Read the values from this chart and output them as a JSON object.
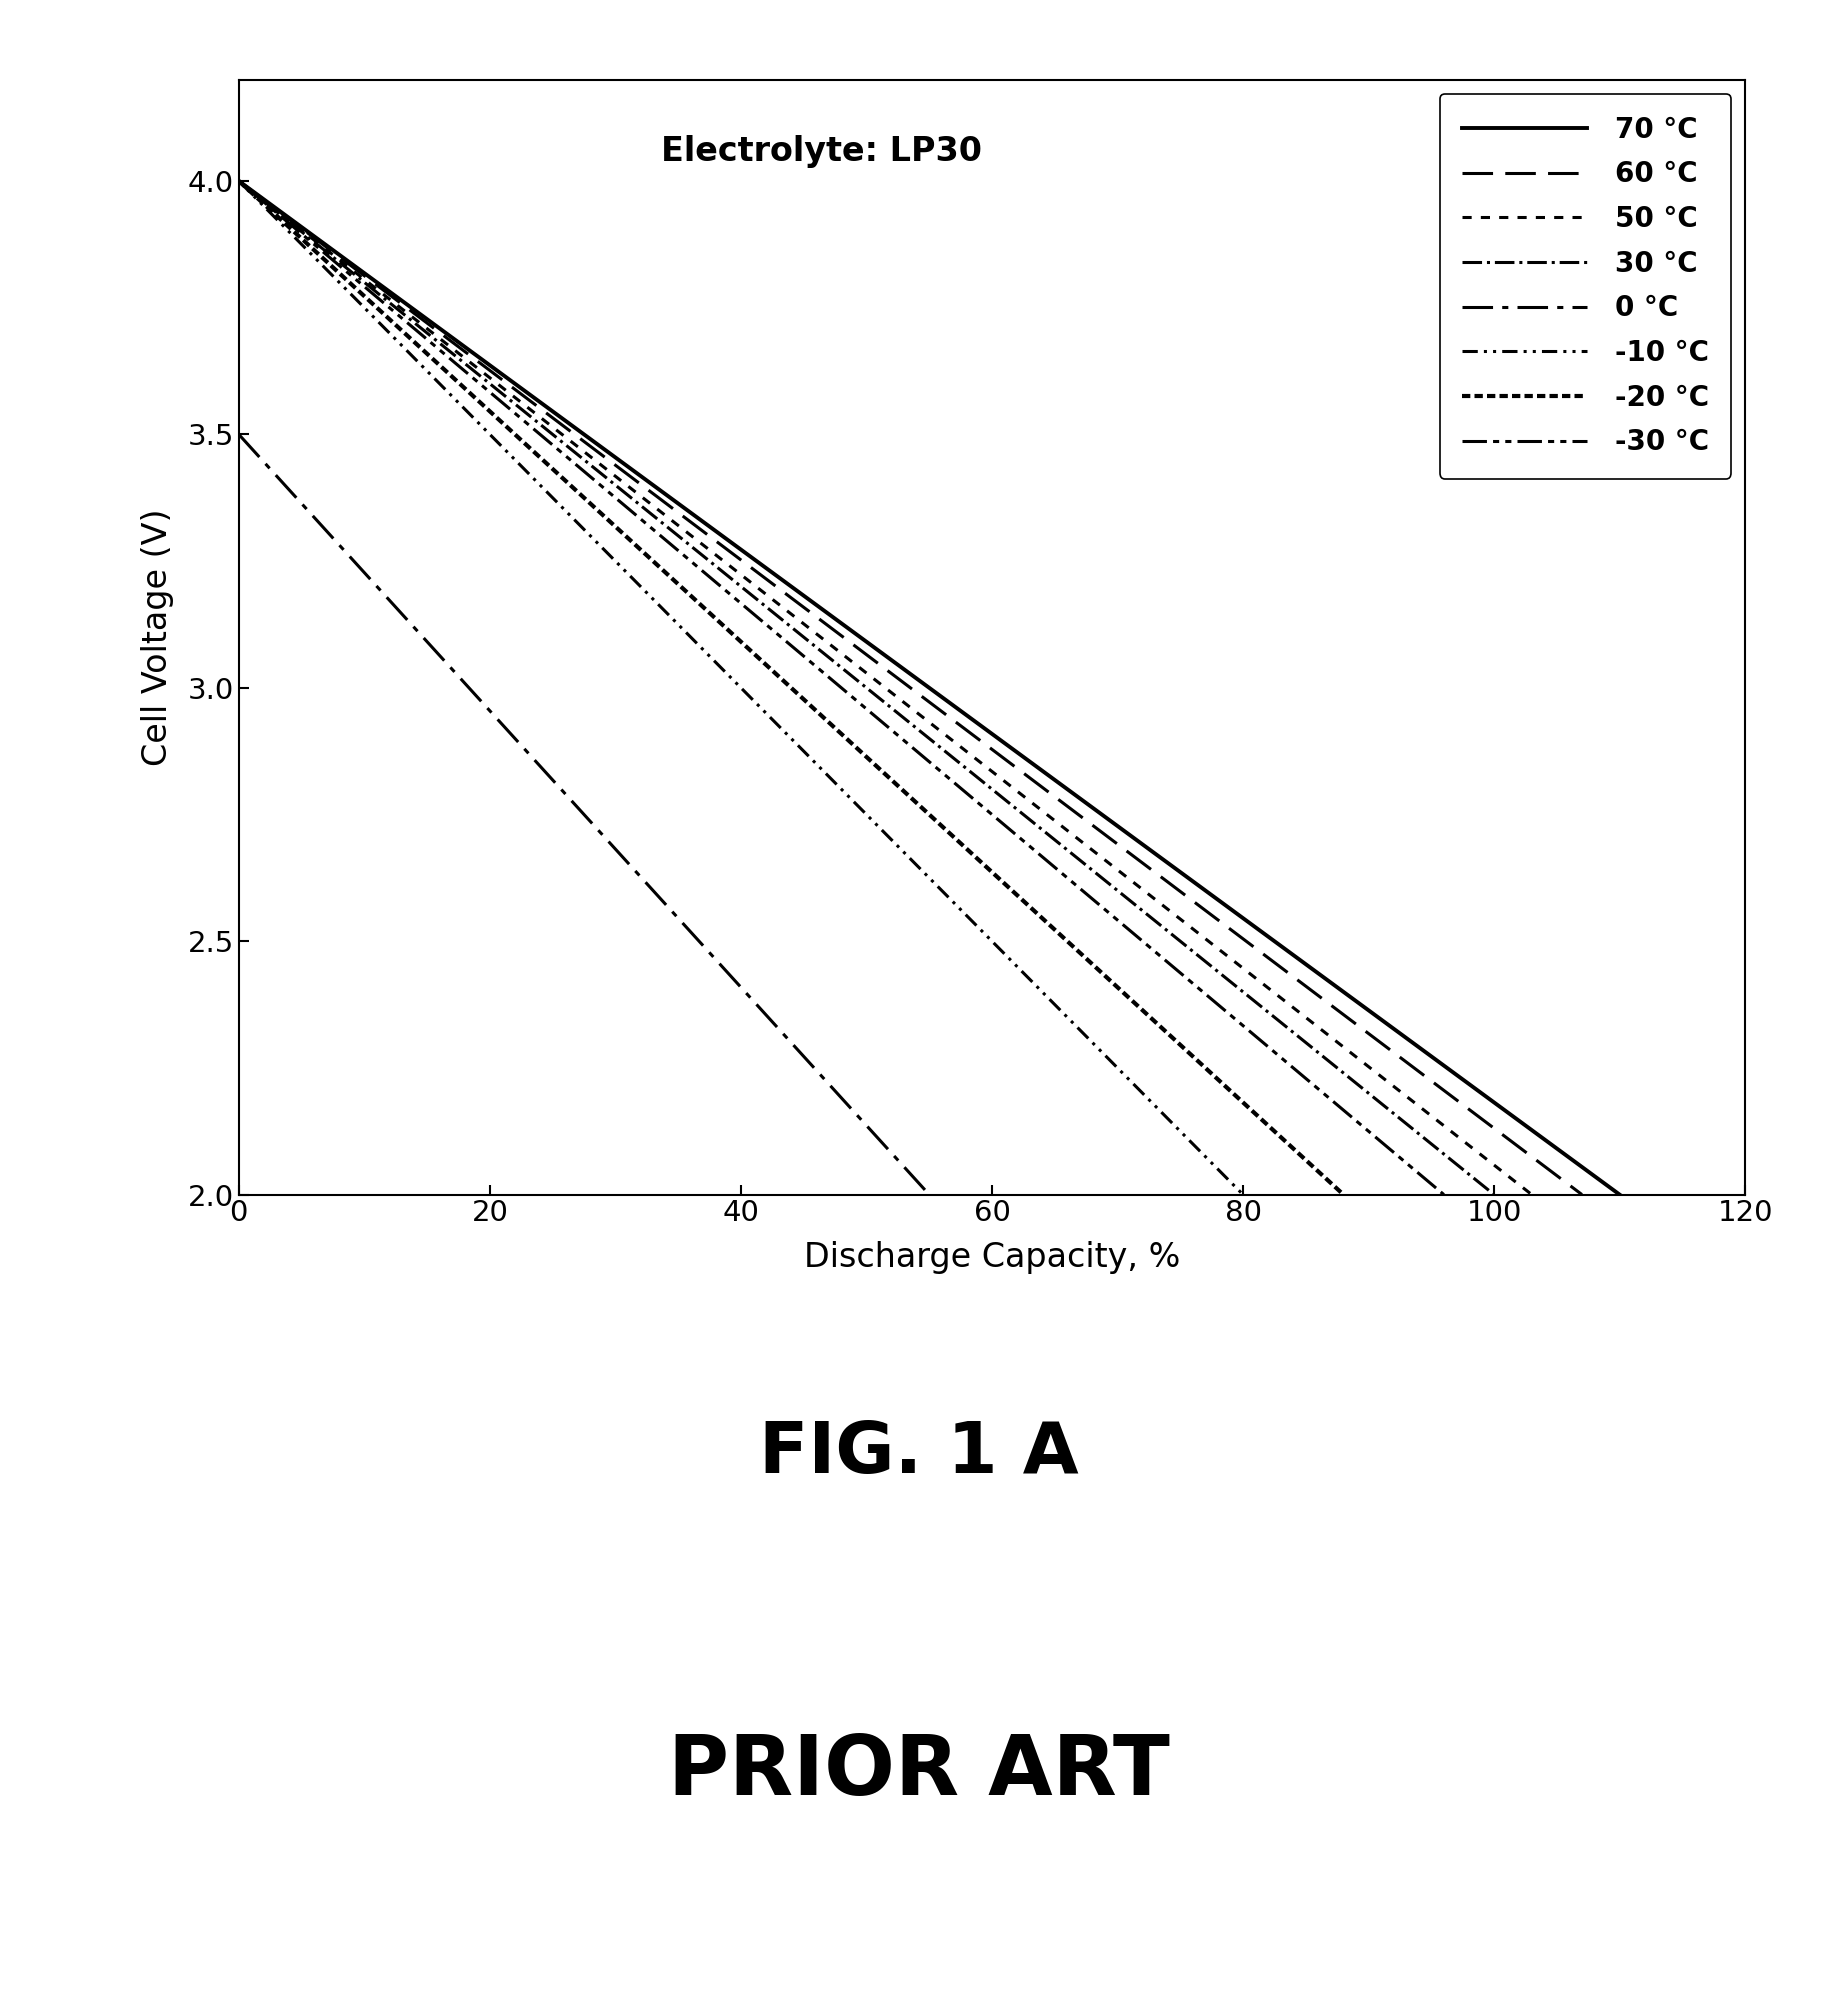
{
  "annotation": "Electrolyte: LP30",
  "xlabel": "Discharge Capacity, %",
  "ylabel": "Cell Voltage (V)",
  "xlim": [
    0,
    120
  ],
  "ylim": [
    2.0,
    4.2
  ],
  "yticks": [
    2.0,
    2.5,
    3.0,
    3.5,
    4.0
  ],
  "xticks": [
    0,
    20,
    40,
    60,
    80,
    100,
    120
  ],
  "fig_label1": "FIG. 1 A",
  "fig_label2": "PRIOR ART",
  "v_start": 4.0,
  "v_end": 2.0,
  "background_color": "#ffffff",
  "line_color": "#000000",
  "curves": [
    {
      "label": "70 °C",
      "x0": 0,
      "y0": 4.0,
      "x_end": 110,
      "lw": 2.8,
      "ls_key": "solid"
    },
    {
      "label": "60 °C",
      "x0": 0,
      "y0": 4.0,
      "x_end": 107,
      "lw": 2.2,
      "ls_key": "dashed"
    },
    {
      "label": "50 °C",
      "x0": 0,
      "y0": 4.0,
      "x_end": 103,
      "lw": 2.2,
      "ls_key": "dotted_sparse"
    },
    {
      "label": "30 °C",
      "x0": 0,
      "y0": 4.0,
      "x_end": 100,
      "lw": 2.2,
      "ls_key": "dashdot"
    },
    {
      "label": "0 °C",
      "x0": 0,
      "y0": 3.5,
      "x_end": 55,
      "lw": 2.2,
      "ls_key": "long_dashdot"
    },
    {
      "label": "-10 °C",
      "x0": 0,
      "y0": 4.0,
      "x_end": 80,
      "lw": 2.2,
      "ls_key": "dashdotdot"
    },
    {
      "label": "-20 °C",
      "x0": 0,
      "y0": 4.0,
      "x_end": 88,
      "lw": 3.0,
      "ls_key": "dense_dotted"
    },
    {
      "label": "-30 °C",
      "x0": 0,
      "y0": 4.0,
      "x_end": 96,
      "lw": 2.2,
      "ls_key": "dash_dot_dot"
    }
  ],
  "linestyles": {
    "solid": "solid",
    "dashed": [
      10,
      4
    ],
    "dotted_sparse": [
      3,
      3
    ],
    "dashdot": "dashdot",
    "long_dashdot": [
      10,
      3,
      2,
      3
    ],
    "dashdotdot": [
      5,
      2,
      1,
      2,
      1,
      2
    ],
    "dense_dotted": [
      2,
      1
    ],
    "dash_dot_dot": [
      8,
      2,
      2,
      2,
      2,
      2
    ]
  }
}
